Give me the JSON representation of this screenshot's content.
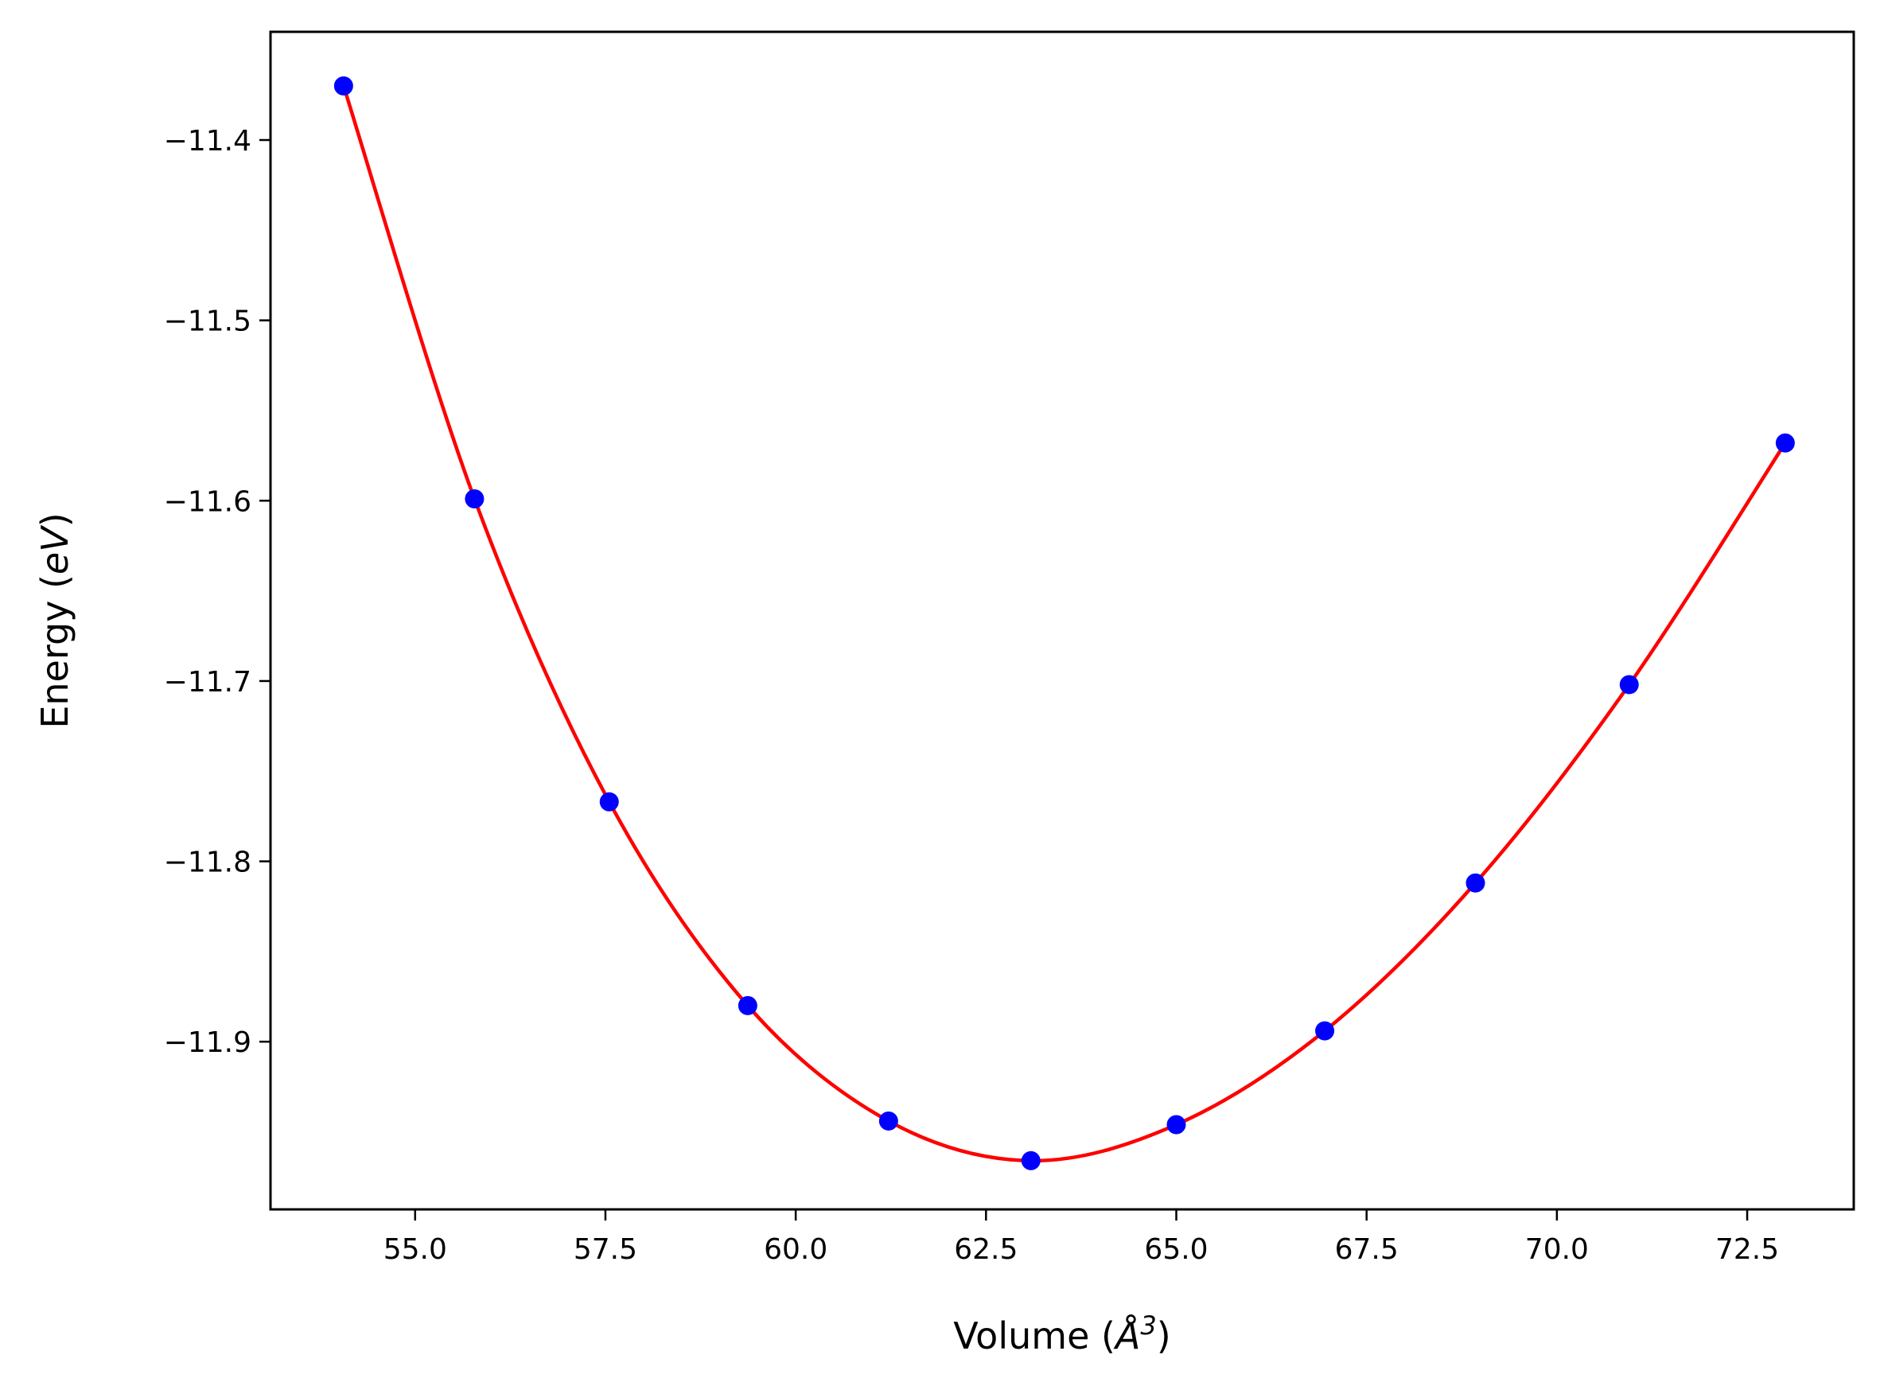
{
  "chart_data": {
    "type": "line",
    "title": "",
    "xlabel": "Volume (Å³)",
    "xlabel_parts": {
      "prefix": "Volume (",
      "symbol": "Å",
      "exponent": "3",
      "suffix": ")"
    },
    "ylabel": "Energy (eV)",
    "ylabel_parts": {
      "prefix": "Energy (",
      "unit": "eV",
      "suffix": ")"
    },
    "xlim": [
      53.1,
      73.9
    ],
    "ylim": [
      -11.993,
      -11.34
    ],
    "x_ticks": [
      55.0,
      57.5,
      60.0,
      62.5,
      65.0,
      67.5,
      70.0,
      72.5
    ],
    "x_tick_labels": [
      "55.0",
      "57.5",
      "60.0",
      "62.5",
      "65.0",
      "67.5",
      "70.0",
      "72.5"
    ],
    "y_ticks": [
      -11.4,
      -11.5,
      -11.6,
      -11.7,
      -11.8,
      -11.9
    ],
    "y_tick_labels": [
      "−11.4",
      "−11.5",
      "−11.6",
      "−11.7",
      "−11.8",
      "−11.9"
    ],
    "grid": false,
    "legend": "none",
    "series": [
      {
        "kind": "scatter",
        "color": "#0000ff",
        "x": [
          54.06,
          55.78,
          57.55,
          59.37,
          61.22,
          63.09,
          65.0,
          66.95,
          68.93,
          70.95,
          73.0
        ],
        "y": [
          -11.37,
          -11.599,
          -11.767,
          -11.88,
          -11.944,
          -11.966,
          -11.946,
          -11.894,
          -11.812,
          -11.702,
          -11.568
        ]
      },
      {
        "kind": "line",
        "color": "#ff0000",
        "x": [
          54.06,
          55.78,
          57.55,
          59.37,
          61.22,
          63.09,
          65.0,
          66.95,
          68.93,
          70.95,
          73.0
        ],
        "y": [
          -11.37,
          -11.599,
          -11.767,
          -11.88,
          -11.944,
          -11.966,
          -11.946,
          -11.894,
          -11.812,
          -11.702,
          -11.568
        ]
      }
    ]
  }
}
